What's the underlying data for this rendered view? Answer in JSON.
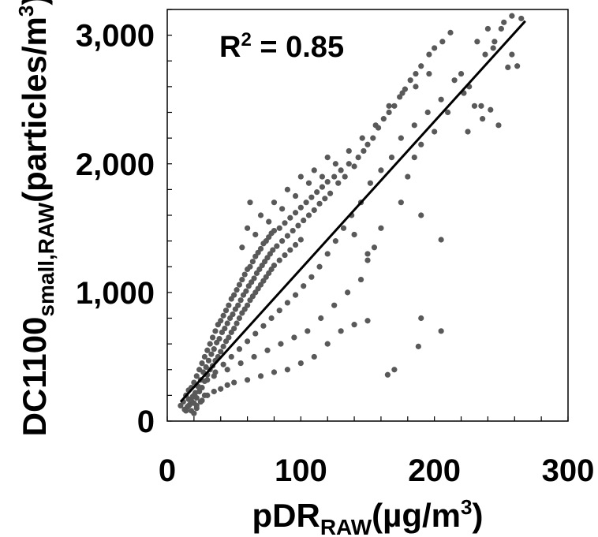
{
  "chart_data": {
    "type": "scatter",
    "xlabel_main": "pDR",
    "xlabel_sub": "RAW",
    "xlabel_unit": "(µg/m",
    "xlabel_unit_sup": "3",
    "xlabel_close": ")",
    "ylabel_main": "DC1100",
    "ylabel_sub": "small,RAW",
    "ylabel_unit": "(particles/m",
    "ylabel_unit_sup": "3",
    "ylabel_close": ")",
    "xlim": [
      0,
      300
    ],
    "ylim": [
      0,
      3200
    ],
    "x_ticks": [
      0,
      100,
      200,
      300
    ],
    "x_tick_labels": [
      "0",
      "100",
      "200",
      "300"
    ],
    "y_ticks": [
      0,
      1000,
      2000,
      3000
    ],
    "y_tick_labels": [
      "0",
      "1,000",
      "2,000",
      "3,000"
    ],
    "x_minor_step": 20,
    "y_minor_step": 200,
    "annotation": {
      "prefix": "R",
      "sup": "2",
      "rest": " = 0.85"
    },
    "trendline": {
      "x": [
        10,
        268
      ],
      "y": [
        150,
        3110
      ]
    },
    "marker_color": "#595959",
    "line_color": "#000000",
    "series": [
      {
        "points": [
          [
            10,
            120
          ],
          [
            12,
            150
          ],
          [
            13,
            90
          ],
          [
            14,
            200
          ],
          [
            15,
            110
          ],
          [
            16,
            170
          ],
          [
            16,
            240
          ],
          [
            17,
            130
          ],
          [
            18,
            80
          ],
          [
            18,
            260
          ],
          [
            19,
            190
          ],
          [
            20,
            300
          ],
          [
            20,
            140
          ],
          [
            21,
            220
          ],
          [
            22,
            350
          ],
          [
            22,
            180
          ],
          [
            23,
            270
          ],
          [
            24,
            400
          ],
          [
            24,
            230
          ],
          [
            25,
            320
          ],
          [
            26,
            450
          ],
          [
            26,
            260
          ],
          [
            27,
            380
          ],
          [
            28,
            500
          ],
          [
            28,
            310
          ],
          [
            29,
            420
          ],
          [
            30,
            550
          ],
          [
            30,
            360
          ],
          [
            31,
            470
          ],
          [
            32,
            600
          ],
          [
            32,
            400
          ],
          [
            33,
            520
          ],
          [
            34,
            650
          ],
          [
            34,
            430
          ],
          [
            35,
            560
          ],
          [
            36,
            700
          ],
          [
            36,
            470
          ],
          [
            37,
            610
          ],
          [
            38,
            750
          ],
          [
            38,
            500
          ],
          [
            39,
            640
          ],
          [
            40,
            780
          ],
          [
            40,
            540
          ],
          [
            41,
            690
          ],
          [
            42,
            820
          ],
          [
            42,
            580
          ],
          [
            43,
            720
          ],
          [
            44,
            860
          ],
          [
            44,
            620
          ],
          [
            45,
            760
          ],
          [
            46,
            900
          ],
          [
            46,
            650
          ],
          [
            47,
            800
          ],
          [
            48,
            950
          ],
          [
            48,
            690
          ],
          [
            49,
            830
          ],
          [
            50,
            980
          ],
          [
            50,
            720
          ],
          [
            51,
            870
          ],
          [
            52,
            1020
          ],
          [
            52,
            760
          ],
          [
            53,
            900
          ],
          [
            54,
            1060
          ],
          [
            54,
            800
          ],
          [
            55,
            940
          ],
          [
            56,
            1100
          ],
          [
            56,
            840
          ],
          [
            57,
            980
          ],
          [
            58,
            1140
          ],
          [
            58,
            870
          ],
          [
            59,
            1010
          ],
          [
            60,
            1180
          ],
          [
            60,
            900
          ],
          [
            61,
            1050
          ],
          [
            62,
            1200
          ],
          [
            62,
            940
          ],
          [
            63,
            1080
          ],
          [
            64,
            1240
          ],
          [
            64,
            970
          ],
          [
            65,
            1110
          ],
          [
            66,
            1280
          ],
          [
            66,
            1000
          ],
          [
            67,
            1150
          ],
          [
            68,
            1310
          ],
          [
            68,
            1030
          ],
          [
            69,
            1180
          ],
          [
            70,
            1340
          ],
          [
            70,
            1060
          ],
          [
            71,
            1210
          ],
          [
            72,
            1380
          ],
          [
            72,
            1090
          ],
          [
            73,
            1240
          ],
          [
            74,
            1400
          ],
          [
            74,
            1120
          ],
          [
            75,
            1270
          ],
          [
            76,
            1430
          ],
          [
            76,
            1150
          ],
          [
            77,
            1300
          ],
          [
            78,
            1460
          ],
          [
            78,
            1180
          ],
          [
            79,
            1330
          ],
          [
            80,
            1480
          ],
          [
            80,
            1210
          ],
          [
            82,
            1360
          ],
          [
            84,
            1500
          ],
          [
            84,
            1250
          ],
          [
            86,
            1400
          ],
          [
            88,
            1540
          ],
          [
            88,
            1290
          ],
          [
            90,
            1440
          ],
          [
            92,
            1580
          ],
          [
            92,
            1330
          ],
          [
            94,
            1480
          ],
          [
            96,
            1620
          ],
          [
            96,
            1370
          ],
          [
            98,
            1520
          ],
          [
            100,
            1660
          ],
          [
            100,
            1410
          ],
          [
            102,
            1560
          ],
          [
            104,
            1700
          ],
          [
            106,
            1600
          ],
          [
            108,
            1740
          ],
          [
            110,
            1640
          ],
          [
            112,
            1780
          ],
          [
            114,
            1690
          ],
          [
            116,
            1820
          ],
          [
            118,
            1730
          ],
          [
            120,
            1860
          ],
          [
            122,
            1770
          ],
          [
            125,
            1900
          ],
          [
            128,
            1850
          ],
          [
            130,
            1950
          ],
          [
            133,
            1900
          ],
          [
            136,
            2000
          ],
          [
            140,
            1980
          ],
          [
            143,
            2050
          ],
          [
            147,
            2100
          ],
          [
            150,
            2150
          ],
          [
            154,
            2200
          ],
          [
            158,
            2280
          ],
          [
            162,
            2350
          ],
          [
            166,
            2400
          ],
          [
            170,
            2450
          ],
          [
            174,
            2520
          ],
          [
            178,
            2580
          ],
          [
            182,
            2650
          ],
          [
            186,
            2700
          ],
          [
            190,
            2760
          ],
          [
            196,
            2850
          ],
          [
            200,
            2900
          ],
          [
            206,
            2950
          ],
          [
            212,
            3020
          ],
          [
            220,
            2700
          ],
          [
            226,
            2600
          ],
          [
            232,
            2950
          ],
          [
            238,
            2850
          ],
          [
            244,
            2900
          ],
          [
            250,
            3050
          ],
          [
            258,
            3150
          ],
          [
            265,
            3130
          ],
          [
            230,
            2450
          ],
          [
            236,
            2350
          ],
          [
            222,
            2550
          ],
          [
            215,
            2650
          ],
          [
            205,
            2500
          ],
          [
            195,
            2400
          ],
          [
            185,
            2300
          ],
          [
            175,
            2200
          ],
          [
            168,
            2050
          ],
          [
            160,
            1950
          ],
          [
            152,
            1850
          ],
          [
            145,
            1700
          ],
          [
            138,
            1600
          ],
          [
            132,
            1500
          ],
          [
            126,
            1400
          ],
          [
            120,
            1300
          ],
          [
            114,
            1200
          ],
          [
            108,
            1120
          ],
          [
            102,
            1050
          ],
          [
            96,
            980
          ],
          [
            90,
            920
          ],
          [
            84,
            860
          ],
          [
            78,
            800
          ],
          [
            72,
            740
          ],
          [
            66,
            680
          ],
          [
            60,
            620
          ],
          [
            54,
            560
          ],
          [
            48,
            500
          ],
          [
            42,
            440
          ],
          [
            36,
            380
          ],
          [
            30,
            320
          ],
          [
            24,
            260
          ],
          [
            20,
            200
          ],
          [
            18,
            160
          ],
          [
            16,
            120
          ],
          [
            14,
            80
          ],
          [
            20,
            60
          ],
          [
            22,
            100
          ],
          [
            25,
            150
          ],
          [
            28,
            200
          ],
          [
            60,
            1500
          ],
          [
            70,
            1600
          ],
          [
            80,
            1700
          ],
          [
            90,
            1800
          ],
          [
            100,
            1900
          ],
          [
            110,
            1950
          ],
          [
            120,
            2050
          ],
          [
            56,
            1350
          ],
          [
            66,
            1450
          ],
          [
            76,
            1550
          ],
          [
            86,
            1650
          ],
          [
            96,
            1750
          ],
          [
            106,
            1850
          ],
          [
            116,
            1900
          ],
          [
            126,
            2000
          ],
          [
            136,
            2100
          ],
          [
            146,
            2200
          ],
          [
            156,
            2300
          ],
          [
            166,
            2450
          ],
          [
            176,
            2550
          ],
          [
            186,
            2600
          ],
          [
            196,
            2700
          ],
          [
            150,
            780
          ],
          [
            165,
            360
          ],
          [
            170,
            400
          ],
          [
            188,
            580
          ],
          [
            190,
            800
          ],
          [
            205,
            700
          ],
          [
            205,
            1410
          ],
          [
            190,
            1600
          ],
          [
            110,
            500
          ],
          [
            120,
            600
          ],
          [
            130,
            700
          ],
          [
            140,
            750
          ],
          [
            100,
            450
          ],
          [
            90,
            400
          ],
          [
            80,
            380
          ],
          [
            70,
            350
          ],
          [
            60,
            320
          ],
          [
            50,
            300
          ],
          [
            45,
            280
          ],
          [
            40,
            250
          ],
          [
            35,
            230
          ],
          [
            30,
            200
          ],
          [
            26,
            160
          ],
          [
            22,
            120
          ],
          [
            150,
            1250
          ],
          [
            155,
            1350
          ],
          [
            145,
            1100
          ],
          [
            135,
            1000
          ],
          [
            125,
            900
          ],
          [
            115,
            800
          ],
          [
            105,
            700
          ],
          [
            95,
            650
          ],
          [
            85,
            600
          ],
          [
            75,
            550
          ],
          [
            65,
            500
          ],
          [
            55,
            450
          ],
          [
            45,
            400
          ],
          [
            35,
            350
          ],
          [
            62,
            1700
          ],
          [
            140,
            1450
          ],
          [
            150,
            1300
          ],
          [
            160,
            1500
          ],
          [
            175,
            1700
          ],
          [
            180,
            1900
          ],
          [
            185,
            2050
          ],
          [
            190,
            2150
          ],
          [
            200,
            2250
          ],
          [
            210,
            2400
          ],
          [
            225,
            2250
          ],
          [
            235,
            2450
          ],
          [
            242,
            2420
          ],
          [
            248,
            2300
          ],
          [
            255,
            2750
          ],
          [
            258,
            2850
          ],
          [
            262,
            2760
          ],
          [
            240,
            3050
          ],
          [
            245,
            2950
          ],
          [
            252,
            3100
          ]
        ]
      }
    ]
  }
}
